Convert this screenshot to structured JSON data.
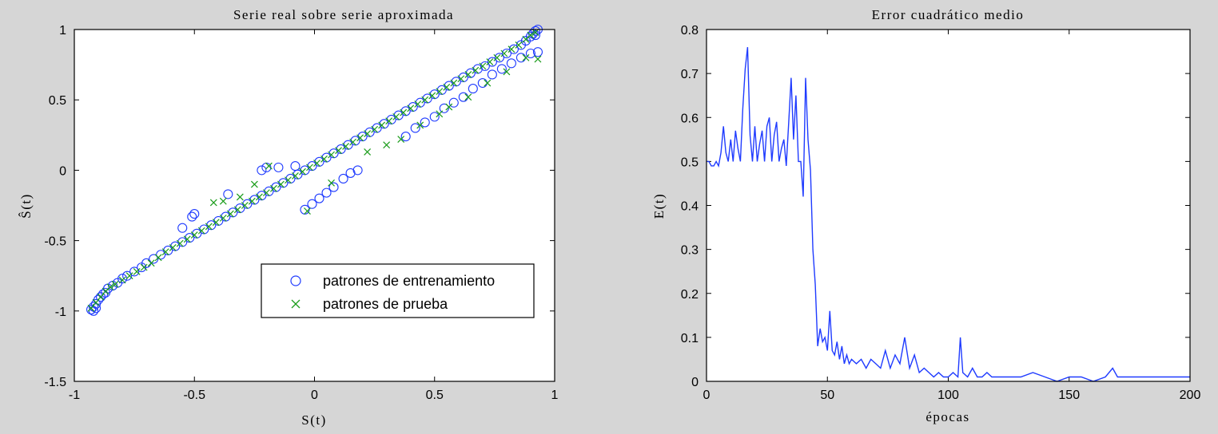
{
  "chart_data": [
    {
      "type": "scatter",
      "title": "Serie real sobre serie aproximada",
      "xlabel": "S(t)",
      "ylabel": "Ŝ(t)",
      "xlim": [
        -1,
        1
      ],
      "ylim": [
        -1.5,
        1
      ],
      "xticks": [
        "-1",
        "-0.5",
        "0",
        "0.5",
        "1"
      ],
      "yticks": [
        "-1.5",
        "-1",
        "-0.5",
        "0",
        "0.5",
        "1"
      ],
      "xtick_values": [
        -1,
        -0.5,
        0,
        0.5,
        1
      ],
      "ytick_values": [
        -1.5,
        -1,
        -0.5,
        0,
        0.5,
        1
      ],
      "legend_position": "lower-right",
      "series": [
        {
          "name": "patrones de entrenamiento",
          "marker": "circle",
          "color": "#1f3bff",
          "points": [
            [
              -0.93,
              -0.99
            ],
            [
              -0.92,
              -0.97
            ],
            [
              -0.91,
              -0.95
            ],
            [
              -0.9,
              -0.92
            ],
            [
              -0.88,
              -0.88
            ],
            [
              -0.86,
              -0.84
            ],
            [
              -0.84,
              -0.82
            ],
            [
              -0.82,
              -0.8
            ],
            [
              -0.8,
              -0.77
            ],
            [
              -0.78,
              -0.75
            ],
            [
              -0.75,
              -0.72
            ],
            [
              -0.72,
              -0.69
            ],
            [
              -0.7,
              -0.66
            ],
            [
              -0.67,
              -0.63
            ],
            [
              -0.64,
              -0.6
            ],
            [
              -0.61,
              -0.57
            ],
            [
              -0.58,
              -0.54
            ],
            [
              -0.55,
              -0.51
            ],
            [
              -0.52,
              -0.48
            ],
            [
              -0.49,
              -0.45
            ],
            [
              -0.46,
              -0.42
            ],
            [
              -0.43,
              -0.39
            ],
            [
              -0.4,
              -0.36
            ],
            [
              -0.37,
              -0.33
            ],
            [
              -0.34,
              -0.3
            ],
            [
              -0.31,
              -0.27
            ],
            [
              -0.28,
              -0.24
            ],
            [
              -0.25,
              -0.21
            ],
            [
              -0.22,
              -0.18
            ],
            [
              -0.19,
              -0.15
            ],
            [
              -0.16,
              -0.12
            ],
            [
              -0.13,
              -0.09
            ],
            [
              -0.1,
              -0.06
            ],
            [
              -0.07,
              -0.03
            ],
            [
              -0.04,
              0.0
            ],
            [
              -0.01,
              0.03
            ],
            [
              0.02,
              0.06
            ],
            [
              0.05,
              0.09
            ],
            [
              0.08,
              0.12
            ],
            [
              0.11,
              0.15
            ],
            [
              0.14,
              0.18
            ],
            [
              0.17,
              0.21
            ],
            [
              0.2,
              0.24
            ],
            [
              0.23,
              0.27
            ],
            [
              0.26,
              0.3
            ],
            [
              0.29,
              0.33
            ],
            [
              0.32,
              0.36
            ],
            [
              0.35,
              0.39
            ],
            [
              0.38,
              0.42
            ],
            [
              0.41,
              0.45
            ],
            [
              0.44,
              0.48
            ],
            [
              0.47,
              0.51
            ],
            [
              0.5,
              0.54
            ],
            [
              0.53,
              0.57
            ],
            [
              0.56,
              0.6
            ],
            [
              0.59,
              0.63
            ],
            [
              0.62,
              0.66
            ],
            [
              0.65,
              0.69
            ],
            [
              0.68,
              0.72
            ],
            [
              0.71,
              0.74
            ],
            [
              0.74,
              0.77
            ],
            [
              0.77,
              0.8
            ],
            [
              0.8,
              0.83
            ],
            [
              0.83,
              0.86
            ],
            [
              0.86,
              0.89
            ],
            [
              0.88,
              0.92
            ],
            [
              0.9,
              0.95
            ],
            [
              0.91,
              0.97
            ],
            [
              0.92,
              0.99
            ],
            [
              0.93,
              1.0
            ],
            [
              -0.55,
              -0.41
            ],
            [
              -0.51,
              -0.33
            ],
            [
              -0.5,
              -0.31
            ],
            [
              -0.36,
              -0.17
            ],
            [
              -0.22,
              0.0
            ],
            [
              -0.2,
              0.02
            ],
            [
              -0.15,
              0.02
            ],
            [
              -0.08,
              0.03
            ],
            [
              -0.04,
              -0.28
            ],
            [
              -0.01,
              -0.24
            ],
            [
              0.02,
              -0.2
            ],
            [
              0.05,
              -0.16
            ],
            [
              0.08,
              -0.12
            ],
            [
              0.12,
              -0.06
            ],
            [
              0.15,
              -0.02
            ],
            [
              0.18,
              0.0
            ],
            [
              0.38,
              0.24
            ],
            [
              0.42,
              0.3
            ],
            [
              0.46,
              0.34
            ],
            [
              0.5,
              0.38
            ],
            [
              0.54,
              0.44
            ],
            [
              0.58,
              0.48
            ],
            [
              0.62,
              0.52
            ],
            [
              0.66,
              0.58
            ],
            [
              0.7,
              0.62
            ],
            [
              0.74,
              0.68
            ],
            [
              0.78,
              0.72
            ],
            [
              0.82,
              0.76
            ],
            [
              0.86,
              0.8
            ],
            [
              0.9,
              0.83
            ],
            [
              0.93,
              0.84
            ],
            [
              -0.89,
              -0.9
            ],
            [
              -0.87,
              -0.87
            ],
            [
              -0.91,
              -0.98
            ],
            [
              -0.92,
              -1.0
            ],
            [
              0.92,
              0.96
            ]
          ]
        },
        {
          "name": "patrones de prueba",
          "marker": "x",
          "color": "#1a9c1a",
          "points": [
            [
              -0.93,
              -0.98
            ],
            [
              -0.91,
              -0.94
            ],
            [
              -0.89,
              -0.9
            ],
            [
              -0.87,
              -0.86
            ],
            [
              -0.85,
              -0.83
            ],
            [
              -0.83,
              -0.81
            ],
            [
              -0.8,
              -0.78
            ],
            [
              -0.77,
              -0.75
            ],
            [
              -0.74,
              -0.72
            ],
            [
              -0.71,
              -0.69
            ],
            [
              -0.68,
              -0.66
            ],
            [
              -0.65,
              -0.62
            ],
            [
              -0.62,
              -0.58
            ],
            [
              -0.59,
              -0.55
            ],
            [
              -0.56,
              -0.52
            ],
            [
              -0.53,
              -0.49
            ],
            [
              -0.5,
              -0.46
            ],
            [
              -0.47,
              -0.43
            ],
            [
              -0.44,
              -0.4
            ],
            [
              -0.41,
              -0.37
            ],
            [
              -0.38,
              -0.34
            ],
            [
              -0.35,
              -0.31
            ],
            [
              -0.32,
              -0.28
            ],
            [
              -0.29,
              -0.25
            ],
            [
              -0.26,
              -0.22
            ],
            [
              -0.23,
              -0.19
            ],
            [
              -0.2,
              -0.16
            ],
            [
              -0.17,
              -0.13
            ],
            [
              -0.14,
              -0.1
            ],
            [
              -0.11,
              -0.07
            ],
            [
              -0.08,
              -0.04
            ],
            [
              -0.05,
              -0.01
            ],
            [
              -0.02,
              0.02
            ],
            [
              0.01,
              0.05
            ],
            [
              0.04,
              0.08
            ],
            [
              0.07,
              0.11
            ],
            [
              0.1,
              0.14
            ],
            [
              0.13,
              0.17
            ],
            [
              0.16,
              0.2
            ],
            [
              0.19,
              0.23
            ],
            [
              0.22,
              0.26
            ],
            [
              0.25,
              0.29
            ],
            [
              0.28,
              0.32
            ],
            [
              0.31,
              0.35
            ],
            [
              0.34,
              0.38
            ],
            [
              0.37,
              0.41
            ],
            [
              0.4,
              0.44
            ],
            [
              0.43,
              0.47
            ],
            [
              0.46,
              0.5
            ],
            [
              0.49,
              0.53
            ],
            [
              0.52,
              0.56
            ],
            [
              0.55,
              0.59
            ],
            [
              0.58,
              0.62
            ],
            [
              0.61,
              0.65
            ],
            [
              0.64,
              0.68
            ],
            [
              0.67,
              0.71
            ],
            [
              0.7,
              0.74
            ],
            [
              0.73,
              0.77
            ],
            [
              0.76,
              0.8
            ],
            [
              0.79,
              0.83
            ],
            [
              0.82,
              0.86
            ],
            [
              0.85,
              0.89
            ],
            [
              0.88,
              0.93
            ],
            [
              0.9,
              0.96
            ],
            [
              0.92,
              0.98
            ],
            [
              0.93,
              0.79
            ],
            [
              -0.42,
              -0.23
            ],
            [
              -0.38,
              -0.22
            ],
            [
              -0.31,
              -0.19
            ],
            [
              -0.25,
              -0.1
            ],
            [
              -0.19,
              0.03
            ],
            [
              -0.03,
              -0.29
            ],
            [
              0.07,
              -0.09
            ],
            [
              0.22,
              0.13
            ],
            [
              0.3,
              0.18
            ],
            [
              0.36,
              0.22
            ],
            [
              0.44,
              0.32
            ],
            [
              0.52,
              0.4
            ],
            [
              0.56,
              0.45
            ],
            [
              0.64,
              0.52
            ],
            [
              0.72,
              0.62
            ],
            [
              0.8,
              0.7
            ],
            [
              0.88,
              0.8
            ]
          ]
        }
      ]
    },
    {
      "type": "line",
      "title": "Error cuadrático medio",
      "xlabel": "épocas",
      "ylabel": "E(t)",
      "xlim": [
        0,
        200
      ],
      "ylim": [
        0,
        0.8
      ],
      "xticks": [
        "0",
        "50",
        "100",
        "150",
        "200"
      ],
      "yticks": [
        "0",
        "0.1",
        "0.2",
        "0.3",
        "0.4",
        "0.5",
        "0.6",
        "0.7",
        "0.8"
      ],
      "xtick_values": [
        0,
        50,
        100,
        150,
        200
      ],
      "ytick_values": [
        0,
        0.1,
        0.2,
        0.3,
        0.4,
        0.5,
        0.6,
        0.7,
        0.8
      ],
      "series": [
        {
          "color": "#1f3bff",
          "x": [
            0,
            1,
            2,
            3,
            4,
            5,
            6,
            7,
            8,
            9,
            10,
            11,
            12,
            13,
            14,
            15,
            16,
            17,
            18,
            19,
            20,
            21,
            22,
            23,
            24,
            25,
            26,
            27,
            28,
            29,
            30,
            31,
            32,
            33,
            34,
            35,
            36,
            37,
            38,
            39,
            40,
            41,
            42,
            43,
            44,
            45,
            46,
            47,
            48,
            49,
            50,
            51,
            52,
            53,
            54,
            55,
            56,
            57,
            58,
            59,
            60,
            62,
            64,
            66,
            68,
            70,
            72,
            74,
            76,
            78,
            80,
            82,
            84,
            86,
            88,
            90,
            92,
            94,
            96,
            98,
            100,
            102,
            104,
            105,
            106,
            108,
            110,
            112,
            114,
            116,
            118,
            120,
            125,
            130,
            135,
            140,
            145,
            150,
            155,
            160,
            165,
            168,
            170,
            175,
            180,
            185,
            190,
            195,
            200
          ],
          "y": [
            0.5,
            0.5,
            0.49,
            0.49,
            0.5,
            0.49,
            0.52,
            0.58,
            0.52,
            0.5,
            0.55,
            0.5,
            0.57,
            0.53,
            0.5,
            0.62,
            0.71,
            0.76,
            0.56,
            0.5,
            0.58,
            0.5,
            0.54,
            0.57,
            0.5,
            0.58,
            0.6,
            0.5,
            0.56,
            0.59,
            0.5,
            0.53,
            0.55,
            0.49,
            0.59,
            0.69,
            0.55,
            0.65,
            0.5,
            0.5,
            0.42,
            0.69,
            0.55,
            0.48,
            0.3,
            0.22,
            0.08,
            0.12,
            0.09,
            0.1,
            0.07,
            0.16,
            0.07,
            0.06,
            0.09,
            0.05,
            0.08,
            0.04,
            0.06,
            0.04,
            0.05,
            0.04,
            0.05,
            0.03,
            0.05,
            0.04,
            0.03,
            0.07,
            0.03,
            0.06,
            0.04,
            0.1,
            0.03,
            0.06,
            0.02,
            0.03,
            0.02,
            0.01,
            0.02,
            0.01,
            0.01,
            0.02,
            0.01,
            0.1,
            0.02,
            0.01,
            0.03,
            0.01,
            0.01,
            0.02,
            0.01,
            0.01,
            0.01,
            0.01,
            0.02,
            0.01,
            0.0,
            0.01,
            0.01,
            0.0,
            0.01,
            0.03,
            0.01,
            0.01,
            0.01,
            0.01,
            0.01,
            0.01,
            0.01
          ]
        }
      ]
    }
  ]
}
